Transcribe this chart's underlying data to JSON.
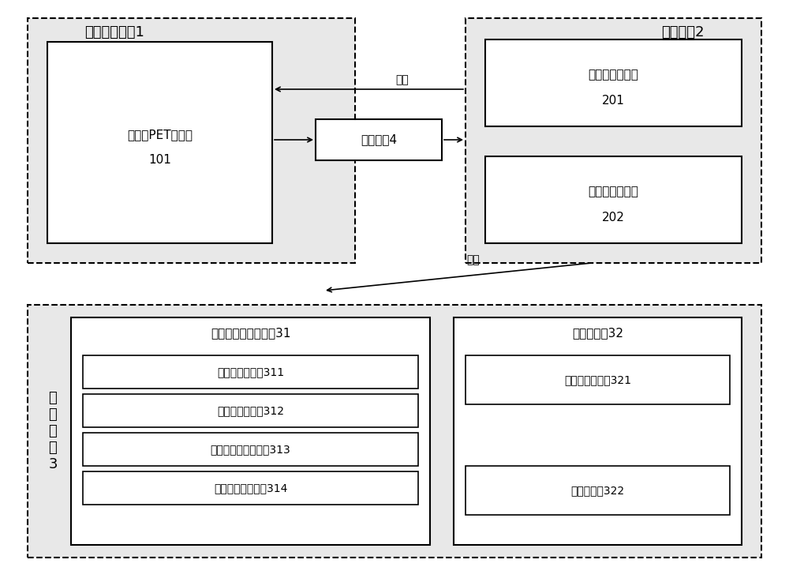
{
  "white": "#ffffff",
  "black": "#000000",
  "light_gray": "#e8e8e8",
  "font_size_title": 13,
  "font_size_box": 11,
  "font_size_sub": 10,
  "module1_label": "数据采集模块1",
  "module2_label": "控制模块2",
  "module3_label": "成\n像\n模\n块\n3",
  "module101_line1": "双平板PET探测器",
  "module101_line2": "101",
  "module4_label": "传输模块4",
  "module201_line1": "系统控制子模块",
  "module201_line2": "201",
  "module202_line1": "数据处理子模块",
  "module202_line2": "202",
  "module31_label": "系统矩阵处理子模块31",
  "module32_label": "重建子模块32",
  "module311_label": "视野划分子模块311",
  "module312_label": "晶体编码子模块312",
  "module313_label": "系统矩阵计算子模块313",
  "module314_label": "对称性处理子模块314",
  "module321_label": "体素重建子模块321",
  "module322_label": "转化子模块322",
  "label_control": "控制",
  "label_data": "数据"
}
